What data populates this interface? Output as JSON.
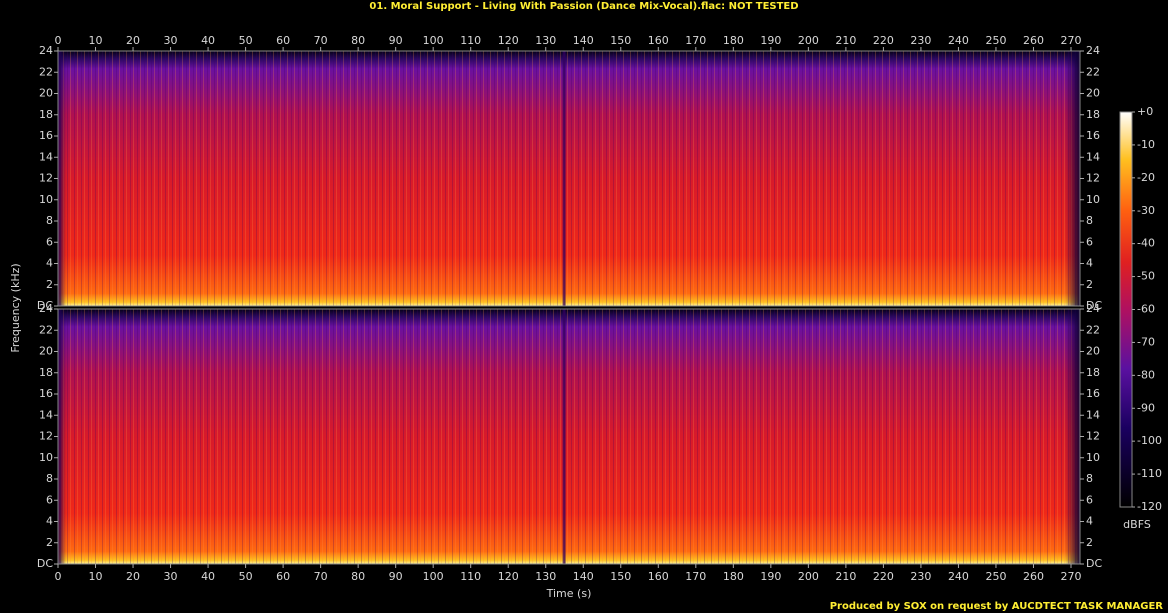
{
  "chart_data": {
    "type": "spectrogram",
    "title": "01. Moral Support - Living With Passion (Dance Mix-Vocal).flac: NOT TESTED",
    "x_label": "Time (s)",
    "y_label": "Frequency (kHz)",
    "xlim": [
      0,
      272.4
    ],
    "xticks": [
      0,
      10,
      20,
      30,
      40,
      50,
      60,
      70,
      80,
      90,
      100,
      110,
      120,
      130,
      140,
      150,
      160,
      170,
      180,
      190,
      200,
      210,
      220,
      230,
      240,
      250,
      260,
      270
    ],
    "ylim": [
      0,
      24
    ],
    "yticks": [
      {
        "value": 0,
        "label": "DC"
      },
      2,
      4,
      6,
      8,
      10,
      12,
      14,
      16,
      18,
      20,
      22,
      24
    ],
    "colorbar": {
      "label": "dBFS",
      "lim": [
        -120,
        0
      ],
      "ticks": [
        {
          "value": 0,
          "label": "+0"
        },
        -10,
        -20,
        -30,
        -40,
        -50,
        -60,
        -70,
        -80,
        -90,
        -100,
        -110,
        -120
      ]
    },
    "footer": "Produced by SOX on request by AUCDTECT TASK MANAGER"
  }
}
